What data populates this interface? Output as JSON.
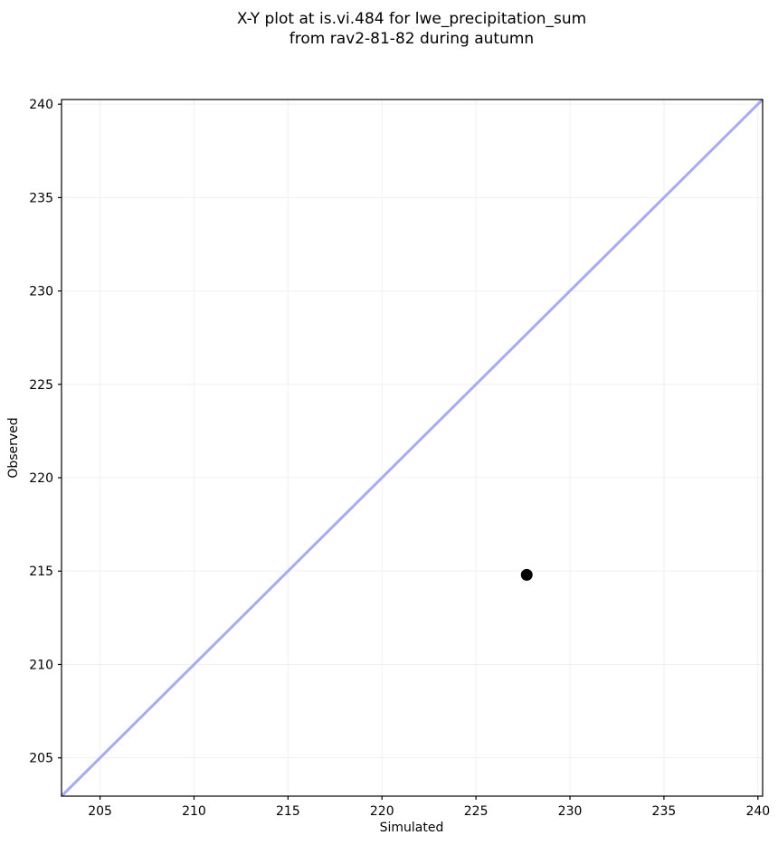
{
  "title": {
    "line1": "X-Y plot at is.vi.484 for lwe_precipitation_sum",
    "line2": "from rav2-81-82 during autumn"
  },
  "chart_data": {
    "type": "scatter",
    "title": "X-Y plot at is.vi.484 for lwe_precipitation_sum\nfrom rav2-81-82 during autumn",
    "title_lines": [
      "X-Y plot at is.vi.484 for lwe_precipitation_sum",
      "from rav2-81-82 during autumn"
    ],
    "xlabel": "Simulated",
    "ylabel": "Observed",
    "xlim": [
      202.95,
      240.25
    ],
    "ylim": [
      202.95,
      240.25
    ],
    "xticks": [
      205,
      210,
      215,
      220,
      225,
      230,
      235,
      240
    ],
    "yticks": [
      205,
      210,
      215,
      220,
      225,
      230,
      235,
      240
    ],
    "grid": true,
    "grid_color": "#f0f0f0",
    "frame_color": "#000000",
    "legend": "none",
    "series": [
      {
        "name": "observed-vs-simulated",
        "type": "scatter",
        "color": "#000000",
        "marker": "circle",
        "marker_radius": 6.5,
        "points": [
          {
            "x": 227.7,
            "y": 214.8
          }
        ]
      }
    ],
    "reference_line": {
      "name": "identity-1to1-line",
      "from": [
        202.95,
        202.95
      ],
      "to": [
        240.25,
        240.25
      ],
      "color": "#a9abf0",
      "width": 3
    }
  }
}
